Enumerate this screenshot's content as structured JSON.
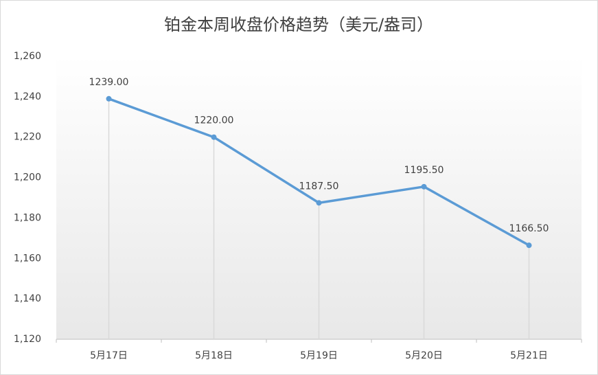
{
  "chart_data": {
    "type": "line",
    "title": "铂金本周收盘价格趋势（美元/盎司）",
    "categories": [
      "5月17日",
      "5月18日",
      "5月19日",
      "5月20日",
      "5月21日"
    ],
    "values": [
      1239,
      1220,
      1187.5,
      1195.5,
      1166.5
    ],
    "value_labels": [
      "1239.00",
      "1220.00",
      "1187.50",
      "1195.50",
      "1166.50"
    ],
    "color": "#5b9bd5",
    "ylim": [
      1120,
      1260
    ],
    "yticks": [
      {
        "value": 1120,
        "label": "1,120"
      },
      {
        "value": 1140,
        "label": "1,140"
      },
      {
        "value": 1160,
        "label": "1,160"
      },
      {
        "value": 1180,
        "label": "1,180"
      },
      {
        "value": 1200,
        "label": "1,200"
      },
      {
        "value": 1220,
        "label": "1,220"
      },
      {
        "value": 1240,
        "label": "1,240"
      },
      {
        "value": 1260,
        "label": "1,260"
      }
    ],
    "grid": false
  }
}
